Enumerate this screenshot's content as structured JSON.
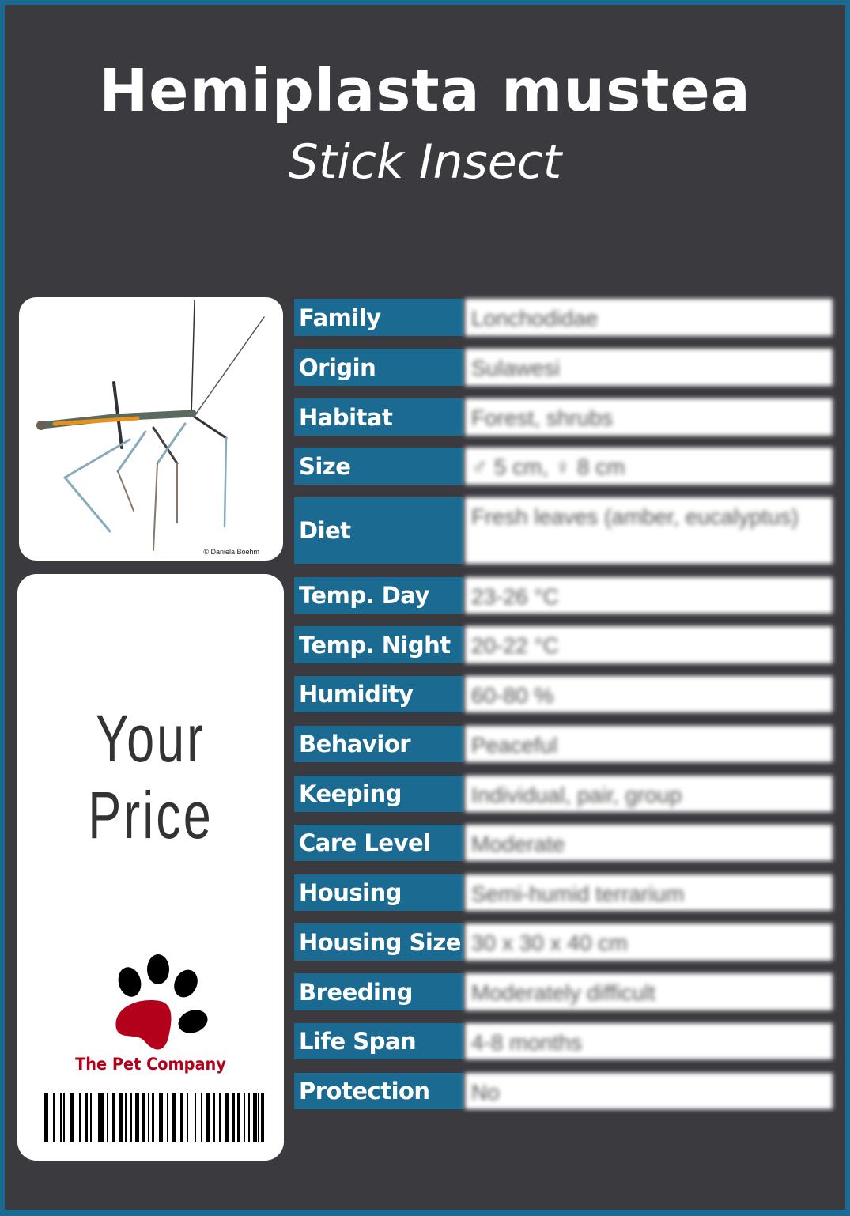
{
  "header": {
    "title": "Hemiplasta mustea",
    "subtitle": "Stick Insect"
  },
  "photo": {
    "credit": "© Daniela Boehm"
  },
  "price_card": {
    "price_label": "Your  Price",
    "company": "The Pet Company"
  },
  "colors": {
    "accent": "#1b6a92",
    "background": "#3a3a3f",
    "brand_red": "#b3001b"
  },
  "rows": [
    {
      "label": "Family",
      "value": "Lonchodidae"
    },
    {
      "label": "Origin",
      "value": "Sulawesi"
    },
    {
      "label": "Habitat",
      "value": "Forest, shrubs"
    },
    {
      "label": "Size",
      "value": "♂ 5 cm, ♀ 8 cm"
    },
    {
      "label": "Diet",
      "value": "Fresh leaves (amber, eucalyptus)"
    },
    {
      "label": "Temp. Day",
      "value": "23-26 °C"
    },
    {
      "label": "Temp. Night",
      "value": "20-22 °C"
    },
    {
      "label": "Humidity",
      "value": "60-80 %"
    },
    {
      "label": "Behavior",
      "value": "Peaceful"
    },
    {
      "label": "Keeping",
      "value": "Individual, pair, group"
    },
    {
      "label": "Care Level",
      "value": "Moderate"
    },
    {
      "label": "Housing",
      "value": "Semi-humid terrarium"
    },
    {
      "label": "Housing Size",
      "value": "30 x 30 x 40 cm"
    },
    {
      "label": "Breeding",
      "value": "Moderately difficult"
    },
    {
      "label": "Life Span",
      "value": "4-8 months"
    },
    {
      "label": "Protection",
      "value": "No"
    }
  ]
}
